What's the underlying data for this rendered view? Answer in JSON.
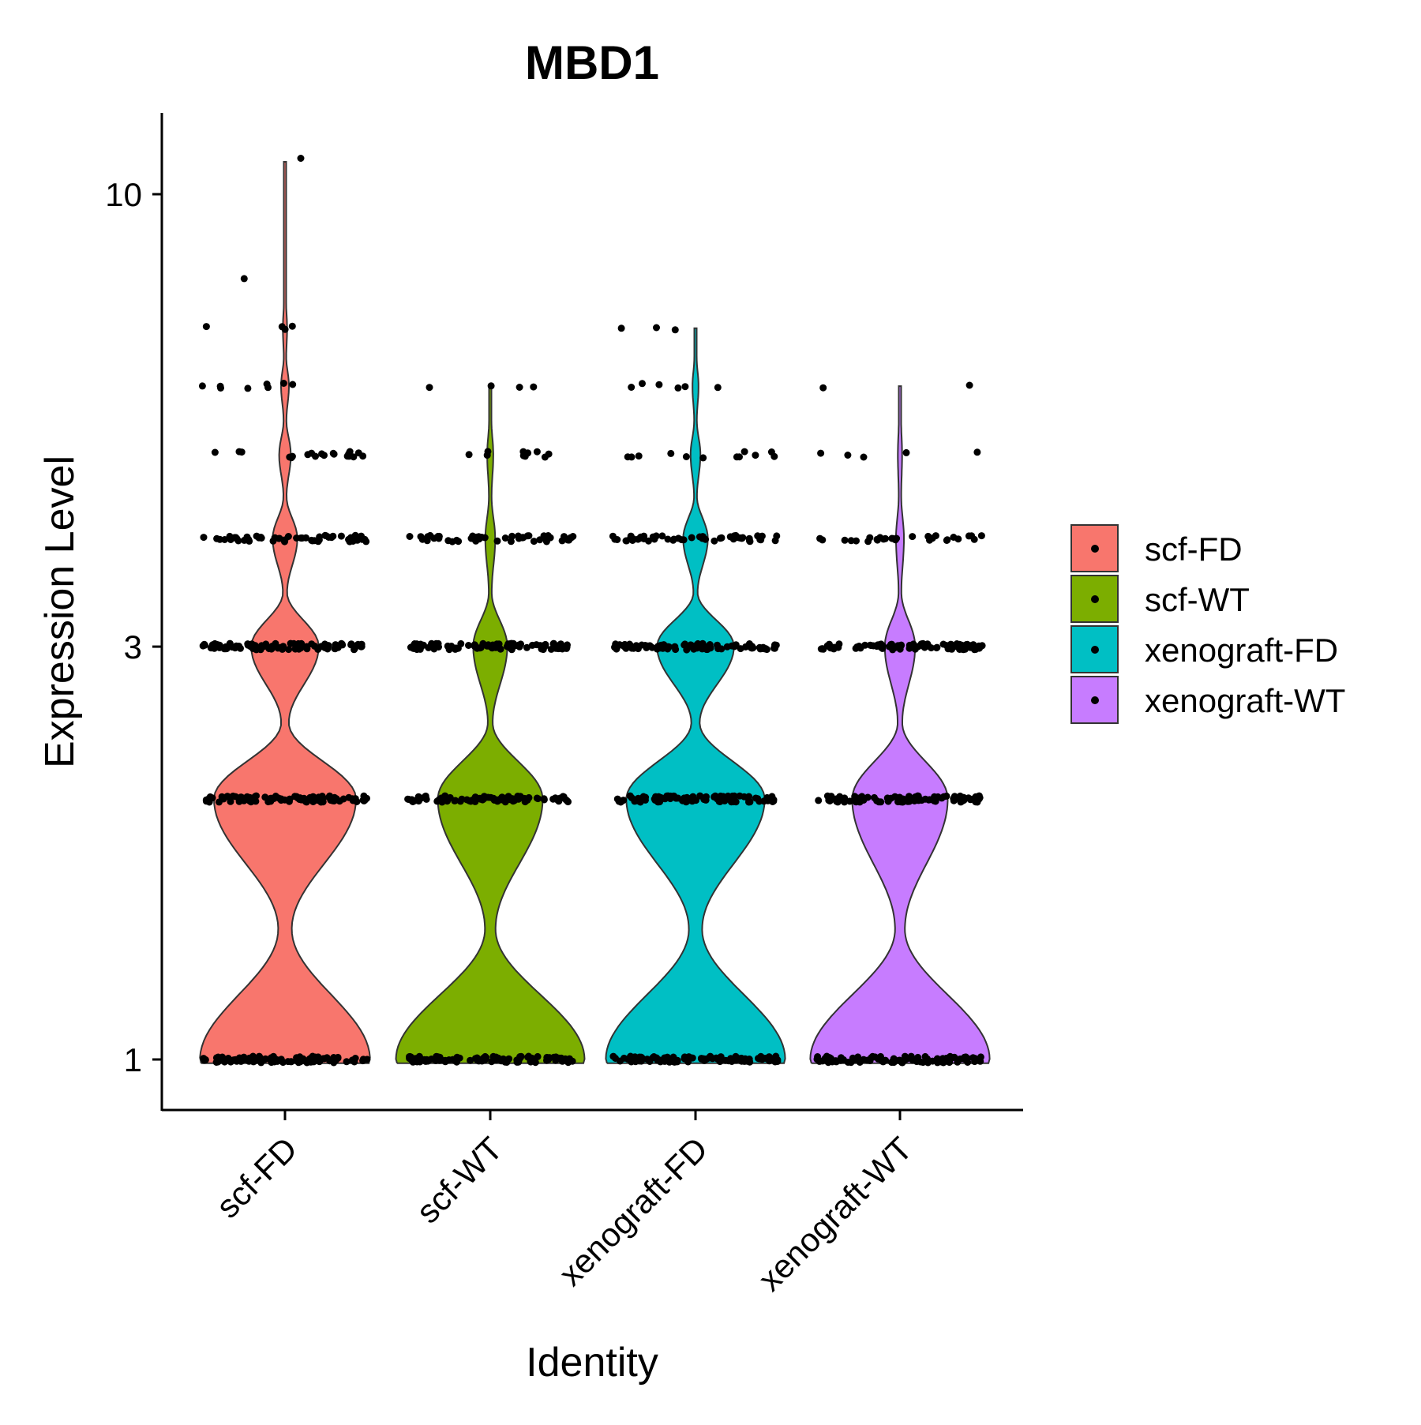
{
  "chart_data": {
    "type": "violin",
    "title": "MBD1",
    "xlabel": "Identity",
    "ylabel": "Expression Level",
    "y_scale": "log",
    "ylim": [
      0.9,
      12
    ],
    "yticks": [
      1,
      3,
      10
    ],
    "ytick_labels": [
      "1",
      "3",
      "10"
    ],
    "categories": [
      "scf-FD",
      "scf-WT",
      "xenograft-FD",
      "xenograft-WT"
    ],
    "colors": [
      "#F8766D",
      "#7CAE00",
      "#00BFC4",
      "#C77CFF"
    ],
    "legend_position": "right",
    "grid": false,
    "series": [
      {
        "category": "scf-FD",
        "max": 10.9,
        "levels": [
          {
            "y": 1,
            "points": 90,
            "density": 0.9
          },
          {
            "y": 2,
            "points": 90,
            "density": 0.75
          },
          {
            "y": 3,
            "points": 90,
            "density": 0.35
          },
          {
            "y": 4,
            "points": 60,
            "density": 0.12
          },
          {
            "y": 5,
            "points": 20,
            "density": 0.05
          },
          {
            "y": 6,
            "points": 8,
            "density": 0.03
          },
          {
            "y": 7,
            "points": 4,
            "density": 0.01
          },
          {
            "y": 8,
            "points": 1,
            "density": 0
          },
          {
            "y": 11,
            "points": 1,
            "density": 0
          }
        ]
      },
      {
        "category": "scf-WT",
        "max": 6,
        "levels": [
          {
            "y": 1,
            "points": 90,
            "density": 1.0
          },
          {
            "y": 2,
            "points": 90,
            "density": 0.55
          },
          {
            "y": 3,
            "points": 90,
            "density": 0.17
          },
          {
            "y": 4,
            "points": 50,
            "density": 0.04
          },
          {
            "y": 5,
            "points": 10,
            "density": 0.02
          },
          {
            "y": 6,
            "points": 4,
            "density": 0
          }
        ]
      },
      {
        "category": "xenograft-FD",
        "max": 7,
        "levels": [
          {
            "y": 1,
            "points": 90,
            "density": 0.95
          },
          {
            "y": 2,
            "points": 90,
            "density": 0.73
          },
          {
            "y": 3,
            "points": 90,
            "density": 0.4
          },
          {
            "y": 4,
            "points": 50,
            "density": 0.12
          },
          {
            "y": 5,
            "points": 12,
            "density": 0.04
          },
          {
            "y": 6,
            "points": 6,
            "density": 0.02
          },
          {
            "y": 7,
            "points": 3,
            "density": 0
          }
        ]
      },
      {
        "category": "xenograft-WT",
        "max": 6,
        "levels": [
          {
            "y": 1,
            "points": 90,
            "density": 0.95
          },
          {
            "y": 2,
            "points": 90,
            "density": 0.5
          },
          {
            "y": 3,
            "points": 90,
            "density": 0.15
          },
          {
            "y": 4,
            "points": 30,
            "density": 0.03
          },
          {
            "y": 5,
            "points": 5,
            "density": 0.01
          },
          {
            "y": 6,
            "points": 2,
            "density": 0
          }
        ]
      }
    ]
  }
}
